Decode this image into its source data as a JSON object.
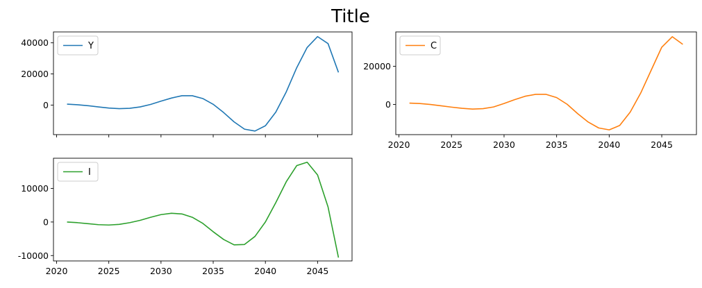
{
  "figure": {
    "title": "Title"
  },
  "chart_data": [
    {
      "type": "line",
      "panel": "Y",
      "x": [
        2021,
        2022,
        2023,
        2024,
        2025,
        2026,
        2027,
        2028,
        2029,
        2030,
        2031,
        2032,
        2033,
        2034,
        2035,
        2036,
        2037,
        2038,
        2039,
        2040,
        2041,
        2042,
        2043,
        2044,
        2045,
        2046,
        2047
      ],
      "series": [
        {
          "name": "Y",
          "color": "#1f77b4",
          "values": [
            600,
            200,
            -400,
            -1200,
            -1900,
            -2300,
            -2100,
            -1200,
            400,
            2500,
            4500,
            6000,
            6000,
            4200,
            500,
            -4800,
            -10800,
            -15500,
            -16700,
            -13300,
            -4500,
            8500,
            24000,
            37000,
            44000,
            39500,
            21000
          ]
        }
      ],
      "xlim": [
        2019.7,
        2048.3
      ],
      "ylim": [
        -19000,
        47000
      ],
      "yticks": [
        0,
        20000,
        40000
      ],
      "xticks": [
        2020,
        2025,
        2030,
        2035,
        2040,
        2045
      ],
      "xtick_labels_visible": false,
      "legend": "upper-left",
      "grid": false
    },
    {
      "type": "line",
      "panel": "C",
      "x": [
        2021,
        2022,
        2023,
        2024,
        2025,
        2026,
        2027,
        2028,
        2029,
        2030,
        2031,
        2032,
        2033,
        2034,
        2035,
        2036,
        2037,
        2038,
        2039,
        2040,
        2041,
        2042,
        2043,
        2044,
        2045,
        2046,
        2047
      ],
      "series": [
        {
          "name": "C",
          "color": "#ff7f0e",
          "values": [
            700,
            500,
            0,
            -700,
            -1400,
            -2000,
            -2400,
            -2200,
            -1300,
            500,
            2500,
            4300,
            5300,
            5300,
            3600,
            100,
            -4800,
            -9200,
            -12300,
            -13300,
            -11000,
            -4000,
            6000,
            18000,
            30000,
            35500,
            31500
          ]
        }
      ],
      "xlim": [
        2019.7,
        2048.3
      ],
      "ylim": [
        -15800,
        38000
      ],
      "yticks": [
        0,
        20000
      ],
      "xticks": [
        2020,
        2025,
        2030,
        2035,
        2040,
        2045
      ],
      "xtick_labels_visible": true,
      "legend": "upper-left",
      "grid": false
    },
    {
      "type": "line",
      "panel": "I",
      "x": [
        2021,
        2022,
        2023,
        2024,
        2025,
        2026,
        2027,
        2028,
        2029,
        2030,
        2031,
        2032,
        2033,
        2034,
        2035,
        2036,
        2037,
        2038,
        2039,
        2040,
        2041,
        2042,
        2043,
        2044,
        2045,
        2046,
        2047
      ],
      "series": [
        {
          "name": "I",
          "color": "#2ca02c",
          "values": [
            0,
            -200,
            -500,
            -800,
            -900,
            -700,
            -200,
            500,
            1400,
            2200,
            2600,
            2400,
            1400,
            -400,
            -2900,
            -5200,
            -6800,
            -6700,
            -4300,
            0,
            5800,
            12000,
            16800,
            17800,
            14000,
            4500,
            -10600
          ]
        }
      ],
      "xlim": [
        2019.7,
        2048.3
      ],
      "ylim": [
        -11600,
        19000
      ],
      "yticks": [
        -10000,
        0,
        10000
      ],
      "xticks": [
        2020,
        2025,
        2030,
        2035,
        2040,
        2045
      ],
      "xtick_labels_visible": true,
      "legend": "upper-left",
      "grid": false
    }
  ]
}
